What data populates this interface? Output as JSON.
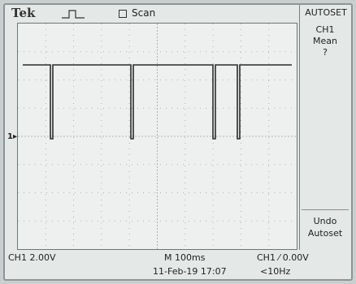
{
  "header": {
    "brand": "Tek",
    "trigger_icon": "pulse-icon",
    "scan_label": "Scan"
  },
  "menu": {
    "title": "AUTOSET",
    "option1": [
      "CH1",
      "Mean",
      "?"
    ],
    "option2": [
      "Undo",
      "Autoset"
    ]
  },
  "channel_marker": "1▸",
  "status": {
    "ch1_scale": "CH1  2.00V",
    "timebase": "M 100ms",
    "trigger": "CH1 ⁄ 0.00V",
    "date_time": "11-Feb-19 17:07",
    "frequency": "<10Hz"
  },
  "colors": {
    "trace": "#2b2b2b",
    "grid": "#9aa0a0",
    "background": "#edf0ee"
  }
}
